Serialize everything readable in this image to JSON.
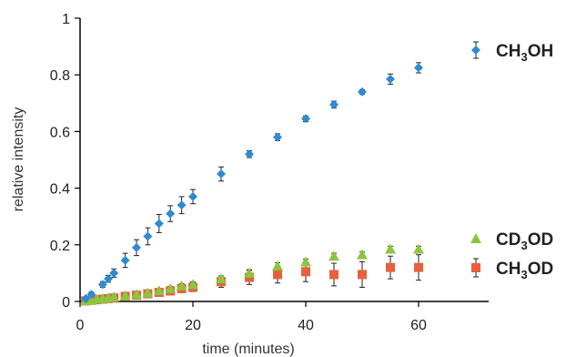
{
  "chart_data": {
    "type": "scatter",
    "xlabel": "time (minutes)",
    "ylabel": "relative intensity",
    "xlim": [
      0,
      70
    ],
    "ylim": [
      0,
      1
    ],
    "xticks": [
      0,
      20,
      40,
      60
    ],
    "yticks": [
      0,
      0.2,
      0.4,
      0.6,
      0.8,
      1
    ],
    "ytick_labels": [
      "0",
      "0.2",
      "0.4",
      "0.6",
      "0.8",
      "1"
    ],
    "grid": false,
    "legend_position": "right, next to each series end",
    "series": [
      {
        "name": "CH3OH",
        "label_parts": [
          "CH",
          "3",
          "OH"
        ],
        "marker": "diamond",
        "color": "#2e8bd1",
        "x": [
          1,
          2,
          4,
          5,
          6,
          8,
          10,
          12,
          14,
          16,
          18,
          20,
          25,
          30,
          35,
          40,
          45,
          50,
          55,
          60
        ],
        "y": [
          0.01,
          0.025,
          0.06,
          0.08,
          0.1,
          0.145,
          0.19,
          0.23,
          0.275,
          0.31,
          0.34,
          0.37,
          0.45,
          0.52,
          0.58,
          0.645,
          0.695,
          0.74,
          0.785,
          0.825
        ],
        "err": [
          0.005,
          0.008,
          0.01,
          0.012,
          0.015,
          0.025,
          0.028,
          0.03,
          0.032,
          0.028,
          0.03,
          0.025,
          0.025,
          0.012,
          0.012,
          0.01,
          0.012,
          0.008,
          0.018,
          0.018
        ]
      },
      {
        "name": "CD3OD",
        "label_parts": [
          "CD",
          "3",
          "OD"
        ],
        "marker": "triangle",
        "color": "#8cc63f",
        "x": [
          1,
          2,
          3,
          4,
          5,
          6,
          8,
          10,
          12,
          14,
          16,
          18,
          20,
          25,
          30,
          35,
          40,
          45,
          50,
          55,
          60
        ],
        "y": [
          0.003,
          0.005,
          0.008,
          0.01,
          0.013,
          0.016,
          0.02,
          0.025,
          0.03,
          0.038,
          0.045,
          0.055,
          0.06,
          0.08,
          0.1,
          0.125,
          0.14,
          0.16,
          0.165,
          0.185,
          0.185
        ],
        "err": [
          0.002,
          0.003,
          0.004,
          0.004,
          0.005,
          0.005,
          0.006,
          0.006,
          0.007,
          0.008,
          0.008,
          0.008,
          0.009,
          0.01,
          0.012,
          0.012,
          0.01,
          0.01,
          0.01,
          0.01,
          0.01
        ]
      },
      {
        "name": "CH3OD",
        "label_parts": [
          "CH",
          "3",
          "OD"
        ],
        "marker": "square",
        "color": "#e8603c",
        "x": [
          1,
          2,
          3,
          4,
          5,
          6,
          8,
          10,
          12,
          14,
          16,
          18,
          20,
          25,
          30,
          35,
          40,
          45,
          50,
          55,
          60
        ],
        "y": [
          0.002,
          0.004,
          0.006,
          0.008,
          0.01,
          0.012,
          0.018,
          0.022,
          0.027,
          0.032,
          0.037,
          0.045,
          0.05,
          0.07,
          0.085,
          0.095,
          0.105,
          0.095,
          0.095,
          0.12,
          0.12
        ],
        "err": [
          0.003,
          0.004,
          0.005,
          0.006,
          0.006,
          0.007,
          0.008,
          0.009,
          0.01,
          0.012,
          0.012,
          0.014,
          0.015,
          0.02,
          0.025,
          0.03,
          0.035,
          0.04,
          0.045,
          0.04,
          0.045
        ]
      }
    ]
  }
}
